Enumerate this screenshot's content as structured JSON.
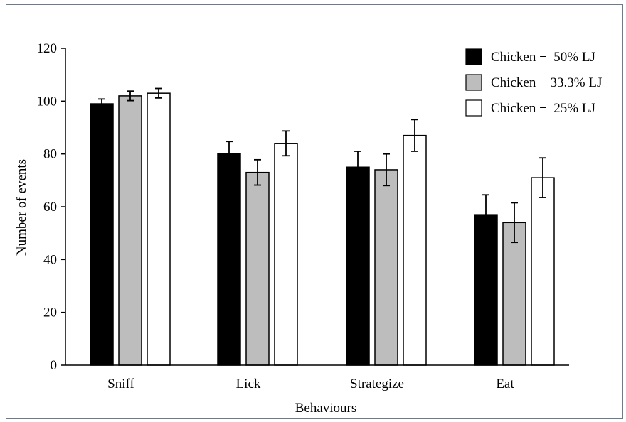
{
  "chart_data": {
    "type": "bar",
    "title": "",
    "xlabel": "Behaviours",
    "ylabel": "Number of events",
    "ylim": [
      0,
      120
    ],
    "yticks": [
      "0",
      "20",
      "40",
      "60",
      "80",
      "100",
      "120"
    ],
    "categories": [
      "Sniff",
      "Lick",
      "Strategize",
      "Eat"
    ],
    "series": [
      {
        "name": "Chicken +  50% LJ",
        "color": "#000000",
        "values": [
          99,
          80,
          75,
          57
        ],
        "errors": [
          1.8,
          4.7,
          6.0,
          7.5
        ]
      },
      {
        "name": "Chicken + 33.3% LJ",
        "color": "#bdbdbd",
        "values": [
          102,
          73,
          74,
          54
        ],
        "errors": [
          1.8,
          4.8,
          6.0,
          7.5
        ]
      },
      {
        "name": "Chicken +  25% LJ",
        "color": "#ffffff",
        "values": [
          103,
          84,
          87,
          71
        ],
        "errors": [
          1.8,
          4.7,
          6.0,
          7.5
        ]
      }
    ],
    "grid": false,
    "legend_position": "top-right",
    "error_bars": true
  }
}
